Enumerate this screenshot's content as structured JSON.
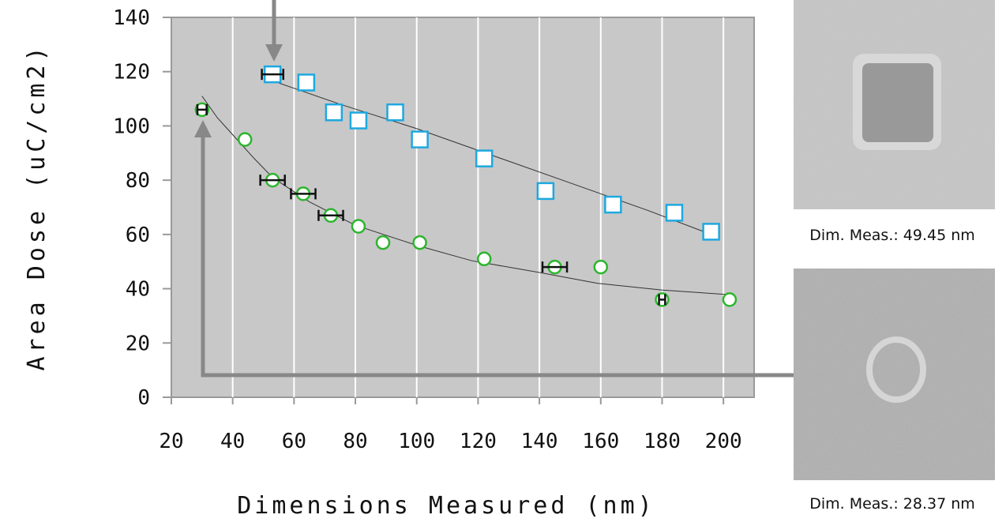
{
  "chart_data": {
    "type": "scatter",
    "xlabel": "Dimensions Measured (nm)",
    "ylabel": "Area Dose (uC/cm2)",
    "xlim": [
      20,
      210
    ],
    "ylim": [
      0,
      140
    ],
    "xticks": [
      20,
      40,
      60,
      80,
      100,
      120,
      140,
      160,
      180,
      200
    ],
    "yticks": [
      0,
      20,
      40,
      60,
      80,
      100,
      120,
      140
    ],
    "grid": "x",
    "series": [
      {
        "marker": "square",
        "color": "#1ea8e0",
        "x": [
          53,
          64,
          73,
          81,
          93,
          101,
          122,
          142,
          164,
          184,
          196
        ],
        "values": [
          119,
          116,
          105,
          102,
          105,
          95,
          88,
          76,
          71,
          68,
          61
        ],
        "xerr": [
          3.5,
          null,
          null,
          null,
          null,
          null,
          null,
          null,
          null,
          null,
          null
        ],
        "fit": {
          "x": [
            52,
            75,
            100,
            125,
            150,
            175,
            196
          ],
          "values": [
            117,
            108,
            99,
            89,
            79,
            69,
            60
          ]
        }
      },
      {
        "marker": "circle",
        "color": "#2db52d",
        "x": [
          30,
          44,
          53,
          63,
          72,
          81,
          89,
          101,
          122,
          145,
          160,
          180,
          202
        ],
        "values": [
          106,
          95,
          80,
          75,
          67,
          63,
          57,
          57,
          51,
          48,
          48,
          36,
          36
        ],
        "xerr": [
          1.5,
          null,
          4,
          4,
          4,
          null,
          null,
          null,
          null,
          4,
          null,
          1,
          null
        ],
        "fit": {
          "x": [
            30,
            35,
            41,
            47,
            53,
            65,
            80,
            100,
            118,
            140,
            159,
            180,
            202
          ],
          "values": [
            111,
            103,
            95.5,
            88,
            81,
            72,
            63.4,
            56,
            50.3,
            46,
            42,
            39.5,
            37.8
          ]
        }
      }
    ]
  },
  "images": [
    {
      "caption": "Dim. Meas.: 49.45 nm"
    },
    {
      "caption": "Dim. Meas.: 28.37 nm"
    }
  ]
}
